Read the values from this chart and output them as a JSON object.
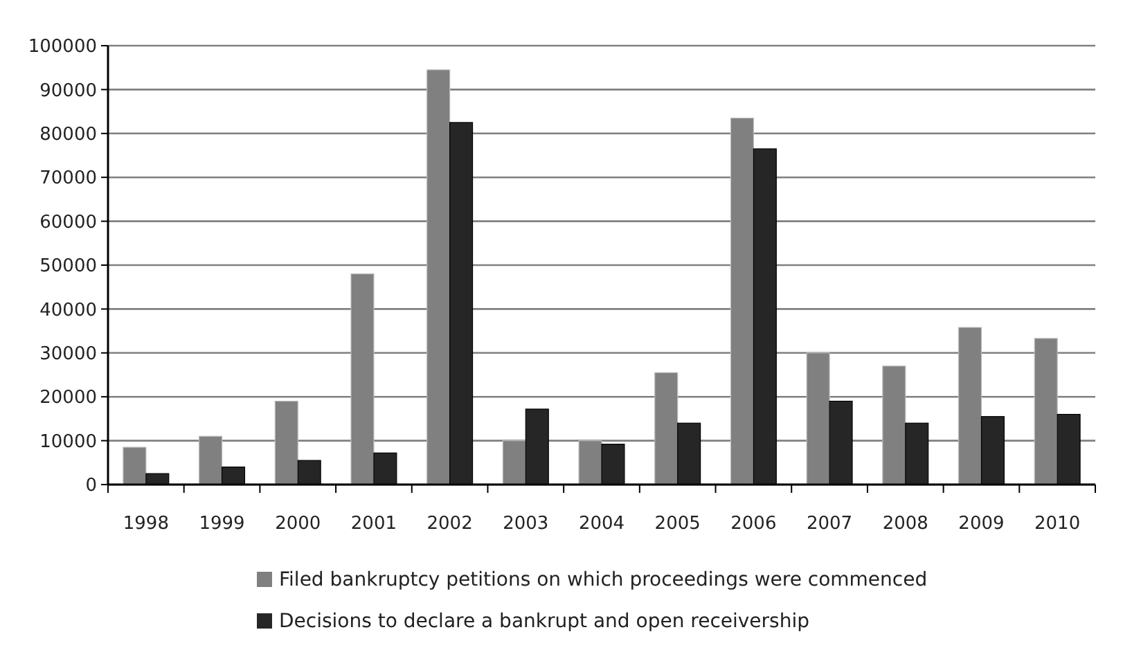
{
  "chart_data": {
    "type": "bar",
    "categories": [
      "1998",
      "1999",
      "2000",
      "2001",
      "2002",
      "2003",
      "2004",
      "2005",
      "2006",
      "2007",
      "2008",
      "2009",
      "2010"
    ],
    "series": [
      {
        "name": "Filed bankruptcy petitions on which proceedings were commenced",
        "color": "#808080",
        "values": [
          8500,
          11000,
          19000,
          48000,
          94500,
          10000,
          10000,
          25500,
          83500,
          30000,
          27000,
          35800,
          33300
        ]
      },
      {
        "name": "Decisions to declare a bankrupt and open receivership",
        "color": "#262626",
        "values": [
          2500,
          4000,
          5500,
          7200,
          82500,
          17200,
          9200,
          14000,
          76500,
          19000,
          14000,
          15500,
          16000
        ]
      }
    ],
    "ylim": [
      0,
      100000
    ],
    "yticks": [
      0,
      10000,
      20000,
      30000,
      40000,
      50000,
      60000,
      70000,
      80000,
      90000,
      100000
    ],
    "grid": "y",
    "legend": "bottom"
  }
}
